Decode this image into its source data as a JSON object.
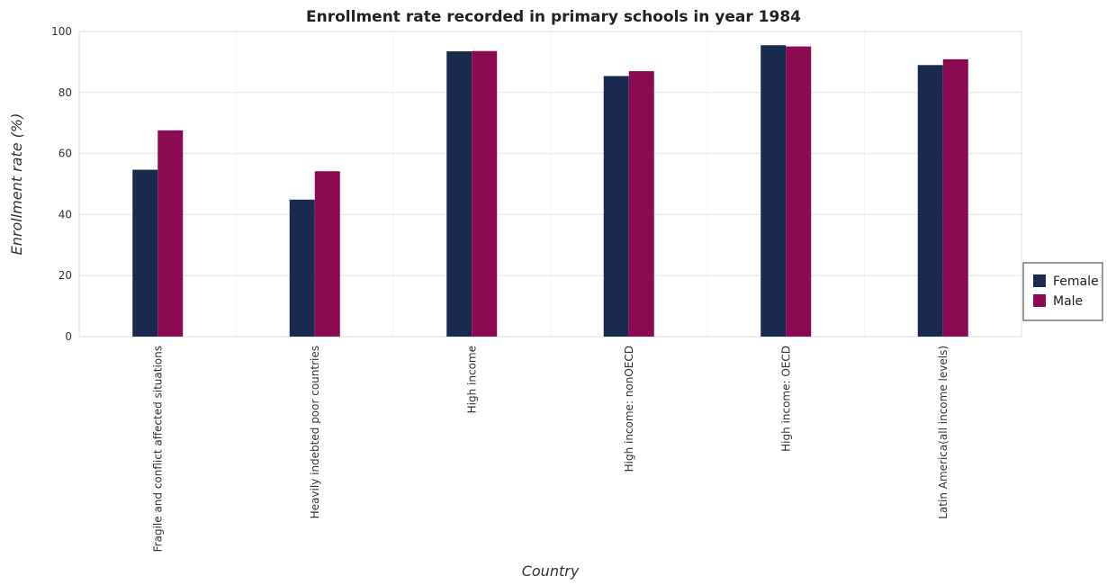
{
  "chart_data": {
    "type": "bar",
    "title": "Enrollment rate recorded in primary schools in year 1984",
    "xlabel": "Country",
    "ylabel": "Enrollment rate (%)",
    "ylim": [
      0,
      100
    ],
    "yticks": [
      0,
      20,
      40,
      60,
      80,
      100
    ],
    "grid": true,
    "legend_position": "right",
    "categories": [
      "Fragile and conflict affected situations",
      "Heavily indebted poor countries",
      "High income",
      "High income: nonOECD",
      "High income: OECD",
      "Latin America(all income levels)"
    ],
    "series": [
      {
        "name": "Female",
        "color": "#1a2a4f",
        "values": [
          54.7,
          44.9,
          93.5,
          85.4,
          95.5,
          89.0
        ]
      },
      {
        "name": "Male",
        "color": "#8b0a52",
        "values": [
          67.6,
          54.2,
          93.6,
          87.0,
          95.1,
          90.9
        ]
      }
    ]
  }
}
